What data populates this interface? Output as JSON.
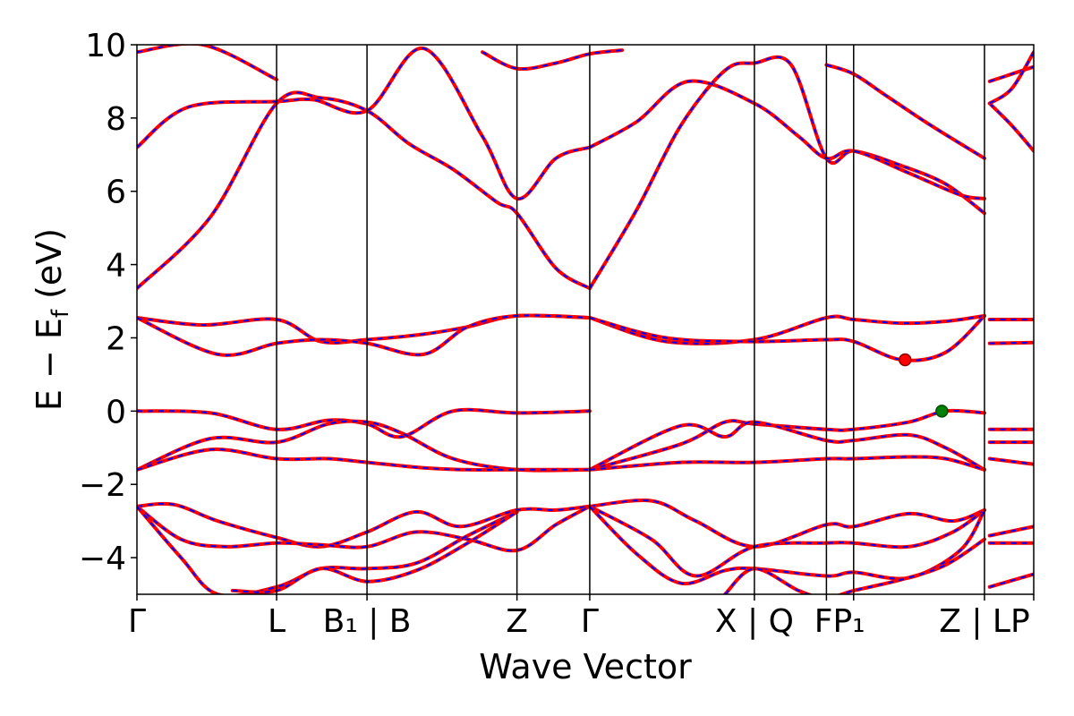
{
  "chart_data": {
    "type": "line",
    "title": "",
    "xlabel": "Wave Vector",
    "ylabel": "E − E",
    "ylabel_sub": "f",
    "ylabel_unit": " (eV)",
    "ylim": [
      -5,
      10
    ],
    "xlim": [
      0,
      12.2
    ],
    "grid": false,
    "legend": "none",
    "y_ticks": [
      -4,
      -2,
      0,
      2,
      4,
      6,
      8,
      10
    ],
    "y_tick_labels": [
      "−4",
      "−2",
      "0",
      "2",
      "4",
      "6",
      "8",
      "10"
    ],
    "k_points": [
      {
        "x": 0.0,
        "label": "Γ"
      },
      {
        "x": 1.9,
        "label": "L"
      },
      {
        "x": 3.13,
        "label": "B1 | B"
      },
      {
        "x": 5.17,
        "label": "Z"
      },
      {
        "x": 6.16,
        "label": "Γ"
      },
      {
        "x": 8.4,
        "label": "X | Q"
      },
      {
        "x": 9.38,
        "label": "F"
      },
      {
        "x": 9.75,
        "label": "P1"
      },
      {
        "x": 11.53,
        "label": "Z | L"
      },
      {
        "x": 12.2,
        "label": "P"
      }
    ],
    "tick_text": [
      {
        "x": 0.0,
        "text": "Γ"
      },
      {
        "x": 1.9,
        "text": "L"
      },
      {
        "x": 3.13,
        "text": "B₁ | B"
      },
      {
        "x": 5.17,
        "text": "Z"
      },
      {
        "x": 6.16,
        "text": "Γ"
      },
      {
        "x": 8.4,
        "text": "X | Q"
      },
      {
        "x": 9.56,
        "text": "FP₁"
      },
      {
        "x": 11.53,
        "text": "Z | LP"
      }
    ],
    "series_colors": {
      "line": "#ff0000",
      "dash": "#0000ff"
    },
    "bands": [
      {
        "x": [
          0,
          1.0,
          1.9,
          2.5,
          3.13,
          3.7,
          4.3,
          4.9,
          5.17,
          5.7,
          6.16
        ],
        "y": [
          3.35,
          5.3,
          8.4,
          8.55,
          8.2,
          7.3,
          6.6,
          5.7,
          5.4,
          3.9,
          3.35
        ]
      },
      {
        "x": [
          0,
          0.7,
          1.9,
          2.4,
          3.13,
          3.9,
          4.7,
          5.17,
          5.7,
          6.16
        ],
        "y": [
          7.2,
          8.3,
          8.45,
          8.5,
          8.2,
          9.9,
          7.5,
          5.8,
          6.9,
          7.2
        ]
      },
      {
        "x": [
          0,
          0.9,
          1.9
        ],
        "y": [
          9.8,
          10.0,
          9.05
        ]
      },
      {
        "x": [
          6.16,
          6.8,
          7.4,
          8.0,
          8.4,
          8.9,
          9.38,
          9.75,
          10.4,
          11.0,
          11.53
        ],
        "y": [
          3.35,
          5.5,
          7.8,
          9.3,
          9.5,
          9.45,
          6.9,
          7.1,
          6.7,
          6.2,
          5.4
        ]
      },
      {
        "x": [
          6.16,
          6.8,
          7.5,
          8.4,
          9.0,
          9.38,
          9.75,
          10.5,
          11.2,
          11.53
        ],
        "y": [
          7.2,
          7.9,
          9.0,
          8.4,
          7.5,
          6.9,
          7.1,
          6.5,
          5.9,
          5.8
        ]
      },
      {
        "x": [
          4.7,
          5.17,
          5.7,
          6.16,
          6.6
        ],
        "y": [
          9.8,
          9.35,
          9.5,
          9.75,
          9.85
        ]
      },
      {
        "x": [
          9.38,
          9.75,
          10.2,
          10.8,
          11.53
        ],
        "y": [
          9.45,
          9.2,
          8.6,
          7.8,
          6.9
        ]
      },
      {
        "x": [
          11.6,
          11.9,
          12.2
        ],
        "y": [
          8.4,
          7.8,
          7.1
        ]
      },
      {
        "x": [
          11.6,
          11.9,
          12.2
        ],
        "y": [
          9.0,
          9.2,
          9.4
        ]
      },
      {
        "x": [
          11.6,
          11.9,
          12.2
        ],
        "y": [
          8.4,
          8.8,
          9.8
        ]
      },
      {
        "x": [
          0,
          0.9,
          1.9,
          2.5,
          3.13,
          3.9,
          4.5,
          5.17,
          6.16
        ],
        "y": [
          2.55,
          2.35,
          2.5,
          1.9,
          1.95,
          2.1,
          2.3,
          2.6,
          2.55
        ]
      },
      {
        "x": [
          0,
          1.1,
          1.9,
          2.5,
          3.13,
          3.9,
          4.5,
          5.17,
          6.16
        ],
        "y": [
          2.55,
          1.55,
          1.85,
          1.95,
          1.85,
          1.55,
          2.3,
          2.6,
          2.55
        ]
      },
      {
        "x": [
          6.16,
          7.2,
          8.4,
          9.38,
          9.75,
          10.4,
          11.0,
          11.53
        ],
        "y": [
          2.55,
          1.9,
          1.95,
          2.55,
          2.5,
          2.4,
          2.45,
          2.6
        ]
      },
      {
        "x": [
          6.16,
          7.2,
          8.4,
          9.38,
          9.75,
          10.4,
          11.0,
          11.53
        ],
        "y": [
          2.55,
          2.0,
          1.9,
          1.95,
          1.9,
          1.4,
          1.6,
          2.6
        ]
      },
      {
        "x": [
          11.6,
          12.2
        ],
        "y": [
          2.5,
          2.5
        ]
      },
      {
        "x": [
          11.6,
          12.2
        ],
        "y": [
          1.85,
          1.87
        ]
      },
      {
        "x": [
          0,
          1.0,
          1.9,
          2.6,
          3.13,
          3.6,
          4.3,
          5.17,
          6.16
        ],
        "y": [
          0.0,
          -0.05,
          -0.5,
          -0.25,
          -0.35,
          -0.7,
          0.0,
          -0.05,
          0.0
        ]
      },
      {
        "x": [
          0,
          1.0,
          1.9,
          2.6,
          3.13,
          3.6,
          4.3,
          5.17,
          6.16
        ],
        "y": [
          -1.6,
          -0.75,
          -0.85,
          -0.35,
          -0.3,
          -0.6,
          -1.3,
          -1.6,
          -1.6
        ]
      },
      {
        "x": [
          0,
          1.0,
          1.9,
          2.6,
          3.13,
          3.9,
          4.5,
          5.17,
          6.16
        ],
        "y": [
          -1.6,
          -1.05,
          -1.3,
          -1.3,
          -1.4,
          -1.55,
          -1.6,
          -1.6,
          -1.6
        ]
      },
      {
        "x": [
          6.16,
          7.4,
          8.0,
          8.4,
          9.38,
          9.75,
          10.5,
          11.0,
          11.53
        ],
        "y": [
          -1.6,
          -0.9,
          -0.3,
          -0.35,
          -0.5,
          -0.5,
          -0.3,
          0.0,
          -0.05
        ]
      },
      {
        "x": [
          6.16,
          7.4,
          8.0,
          8.4,
          9.38,
          9.75,
          10.5,
          11.0,
          11.53
        ],
        "y": [
          -1.6,
          -0.4,
          -0.7,
          -0.3,
          -0.8,
          -0.8,
          -0.65,
          -1.0,
          -1.6
        ]
      },
      {
        "x": [
          6.16,
          7.4,
          8.4,
          9.38,
          9.75,
          10.5,
          11.0,
          11.53
        ],
        "y": [
          -1.6,
          -1.4,
          -1.4,
          -1.3,
          -1.3,
          -1.25,
          -1.3,
          -1.6
        ]
      },
      {
        "x": [
          11.6,
          12.2
        ],
        "y": [
          -0.5,
          -0.5
        ]
      },
      {
        "x": [
          11.6,
          12.2
        ],
        "y": [
          -0.85,
          -0.85
        ]
      },
      {
        "x": [
          11.6,
          12.2
        ],
        "y": [
          -1.3,
          -1.45
        ]
      },
      {
        "x": [
          0,
          0.5,
          1.1,
          1.9,
          2.5,
          3.13,
          3.8,
          4.4,
          5.17,
          5.7,
          6.16
        ],
        "y": [
          -2.6,
          -2.55,
          -3.0,
          -3.45,
          -3.7,
          -3.3,
          -2.75,
          -3.15,
          -2.7,
          -2.7,
          -2.6
        ]
      },
      {
        "x": [
          0,
          0.6,
          1.2,
          1.9,
          2.5,
          3.13,
          3.8,
          4.5,
          5.17,
          5.7,
          6.16
        ],
        "y": [
          -2.6,
          -3.5,
          -3.7,
          -3.6,
          -3.65,
          -3.7,
          -3.3,
          -3.5,
          -3.8,
          -3.1,
          -2.6
        ]
      },
      {
        "x": [
          0,
          0.6,
          1.1,
          1.9,
          2.5,
          3.13,
          3.8,
          4.5,
          5.17
        ],
        "y": [
          -2.6,
          -4.0,
          -5.0,
          -4.8,
          -4.3,
          -4.3,
          -4.15,
          -3.4,
          -2.75
        ]
      },
      {
        "x": [
          1.3,
          1.9,
          2.5,
          3.13,
          3.8,
          4.5,
          5.17
        ],
        "y": [
          -4.9,
          -4.9,
          -4.3,
          -4.65,
          -4.35,
          -3.6,
          -2.75
        ]
      },
      {
        "x": [
          6.16,
          7.0,
          7.6,
          8.4,
          9.38,
          9.75,
          10.5,
          11.1,
          11.53
        ],
        "y": [
          -2.6,
          -2.45,
          -3.0,
          -3.7,
          -3.1,
          -3.15,
          -2.8,
          -3.0,
          -2.7
        ]
      },
      {
        "x": [
          6.16,
          7.0,
          7.6,
          8.4,
          9.38,
          9.75,
          10.5,
          11.1,
          11.53
        ],
        "y": [
          -2.6,
          -3.5,
          -4.5,
          -3.7,
          -3.6,
          -3.6,
          -3.7,
          -3.3,
          -2.7
        ]
      },
      {
        "x": [
          6.16,
          6.8,
          7.4,
          8.0,
          8.4,
          9.38,
          9.75,
          10.5,
          11.2,
          11.53
        ],
        "y": [
          -2.6,
          -3.9,
          -4.7,
          -4.35,
          -4.3,
          -4.5,
          -4.4,
          -4.55,
          -3.8,
          -2.7
        ]
      },
      {
        "x": [
          8.0,
          8.4,
          9.0,
          9.38,
          9.75,
          10.4,
          11.0,
          11.53
        ],
        "y": [
          -5.0,
          -4.3,
          -4.9,
          -5.1,
          -4.9,
          -4.6,
          -4.2,
          -3.5
        ]
      },
      {
        "x": [
          11.6,
          12.2
        ],
        "y": [
          -3.4,
          -3.15
        ]
      },
      {
        "x": [
          11.6,
          12.2
        ],
        "y": [
          -3.6,
          -3.6
        ]
      },
      {
        "x": [
          11.6,
          12.2
        ],
        "y": [
          -4.8,
          -4.45
        ]
      }
    ],
    "markers": [
      {
        "x": 10.45,
        "y": 1.4,
        "color": "#ff0000",
        "edge": "#8b0000"
      },
      {
        "x": 10.95,
        "y": 0.0,
        "color": "#008000",
        "edge": "#004d00"
      }
    ]
  }
}
